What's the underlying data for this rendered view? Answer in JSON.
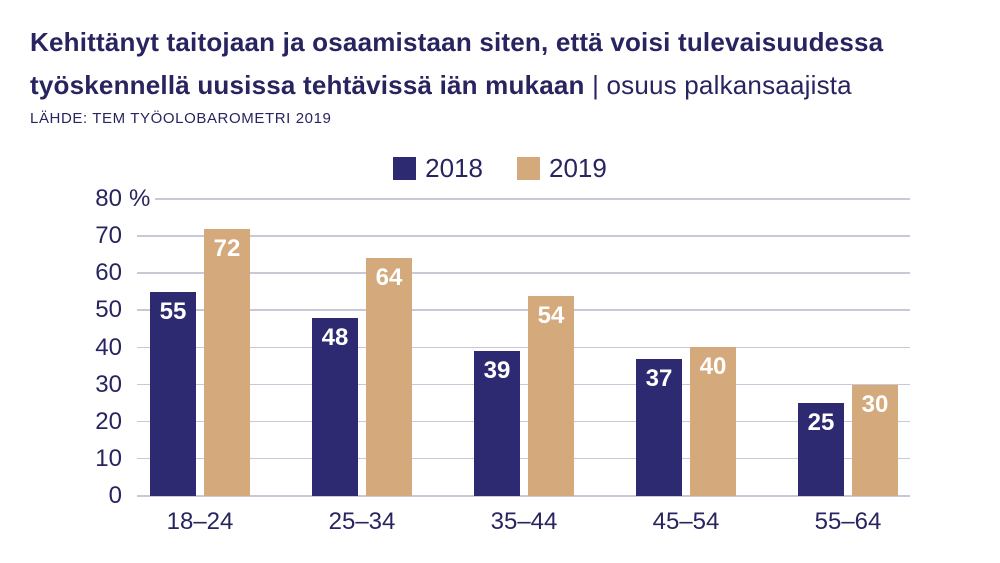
{
  "title": {
    "line1": "Kehittänyt taitojaan ja osaamistaan siten, että voisi tulevaisuudessa",
    "line2_bold": "työskennellä uusissa tehtävissä iän mukaan",
    "line2_light": "| osuus palkansaajista"
  },
  "source": "LÄHDE: TEM TYÖOLOBAROMETRI 2019",
  "colors": {
    "text_navy": "#27245F",
    "gridline": "#C9C7D8",
    "value_label": "#FFFFFF",
    "background": "#FFFFFF"
  },
  "chart_data": {
    "type": "bar",
    "title": "Kehittänyt taitojaan ja osaamistaan siten, että voisi tulevaisuudessa työskennellä uusissa tehtävissä iän mukaan",
    "subtitle": "osuus palkansaajista",
    "source": "LÄHDE: TEM TYÖOLOBAROMETRI 2019",
    "categories": [
      "18–24",
      "25–34",
      "35–44",
      "45–54",
      "55–64"
    ],
    "series": [
      {
        "name": "2018",
        "color": "#2E2A72",
        "values": [
          55,
          48,
          39,
          37,
          25
        ]
      },
      {
        "name": "2019",
        "color": "#D4A97B",
        "values": [
          72,
          64,
          54,
          40,
          30
        ]
      }
    ],
    "ylim": [
      0,
      80
    ],
    "ytick_step": 10,
    "ytick_suffix_top": "%",
    "grid": true,
    "legend_position": "top-center",
    "value_labels": "inside-top"
  }
}
